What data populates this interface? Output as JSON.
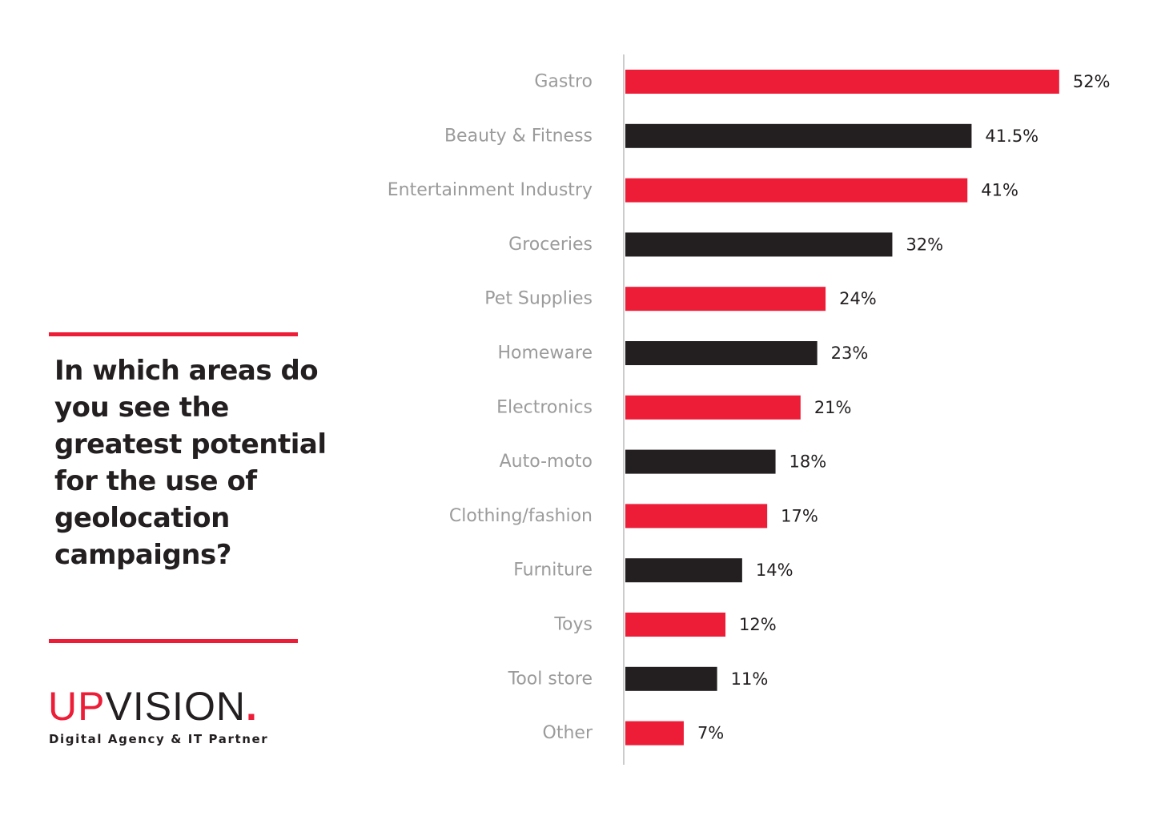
{
  "question": "In which areas do you see the greatest potential for the use of geolocation campaigns?",
  "logo": {
    "up": "UP",
    "vision": "VISION",
    "dot": "."
  },
  "tagline": "Digital Agency & IT Partner",
  "colors": {
    "red": "#ed1c37",
    "dark": "#231f20",
    "label_gray": "#9b9b9b",
    "axis_gray": "#cccccc"
  },
  "chart_data": {
    "type": "bar",
    "orientation": "horizontal",
    "title": "",
    "xlabel": "",
    "ylabel": "",
    "categories": [
      "Gastro",
      "Beauty & Fitness",
      "Entertainment Industry",
      "Groceries",
      "Pet Supplies",
      "Homeware",
      "Electronics",
      "Auto-moto",
      "Clothing/fashion",
      "Furniture",
      "Toys",
      "Tool store",
      "Other"
    ],
    "values": [
      52,
      41.5,
      41,
      32,
      24,
      23,
      21,
      18,
      17,
      14,
      12,
      11,
      7
    ],
    "value_labels": [
      "52%",
      "41.5%",
      "41%",
      "32%",
      "24%",
      "23%",
      "21%",
      "18%",
      "17%",
      "14%",
      "12%",
      "11%",
      "7%"
    ],
    "bar_colors": [
      "#ed1c37",
      "#231f20",
      "#ed1c37",
      "#231f20",
      "#ed1c37",
      "#231f20",
      "#ed1c37",
      "#231f20",
      "#ed1c37",
      "#231f20",
      "#ed1c37",
      "#231f20",
      "#ed1c37"
    ],
    "grid": false,
    "legend": "none"
  }
}
